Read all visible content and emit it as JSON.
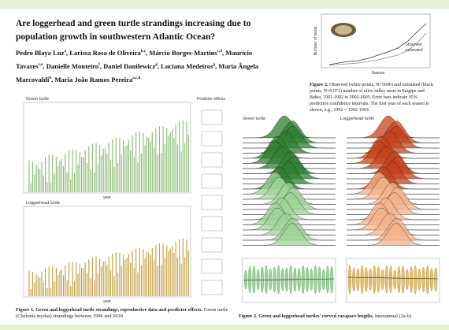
{
  "poster": {
    "title": "Are loggerhead and green turtle strandings increasing due to population growth in southwestern Atlantic Ocean?",
    "authors": [
      {
        "name": "Pedro Blaya Luz",
        "aff": "a"
      },
      {
        "name": "Larissa Rosa de Oliveira",
        "aff": "b,c"
      },
      {
        "name": "Márcio Borges-Martins",
        "aff": "c,d"
      },
      {
        "name": "Mauricio Tavares",
        "aff": "c,e"
      },
      {
        "name": "Danielle Monteiro",
        "aff": "f"
      },
      {
        "name": "Daniel Danilewicz",
        "aff": "g"
      },
      {
        "name": "Luciana Medeiros",
        "aff": "g"
      },
      {
        "name": "Maria Ângela Marcovaldi",
        "aff": "h"
      },
      {
        "name": "Maria João Ramos Pereira",
        "aff": "a,c,h"
      }
    ],
    "figure_top": {
      "legend": [
        "observed",
        "estimated"
      ],
      "y_label": "Number of nests",
      "x_label": "Season",
      "caption_bold": "Figure 2.",
      "caption": "Observed (white points, N=5696) and estimated (black points, N=9,071) number of olive ridley nests in Sergipe and Bahia, 1991-1992 to 2002-2003. Error bars indicate 95% prediction confidence intervals. The first year of each season is shown, e.g., 1992 = 1992-1993."
    },
    "figure_left": {
      "panel_a": "Green turtle",
      "panel_b": "Loggerhead turtle",
      "predictors": "Predictor effects",
      "x_label": "year",
      "caption_bold": "Figure 1. Green and loggerhead turtle strandings, reproductive data and predictor effects.",
      "caption": "Green turtle (Chelonia mydas) strandings between 1996 and 2018"
    },
    "figure_right": {
      "panel_a": "Green turtle",
      "panel_b": "Loggerhead turtle",
      "caption_bold": "Figure 2. Green and loggerhead turtles' curved carapace lengths.",
      "caption": "Interannual (2a-b)"
    }
  }
}
